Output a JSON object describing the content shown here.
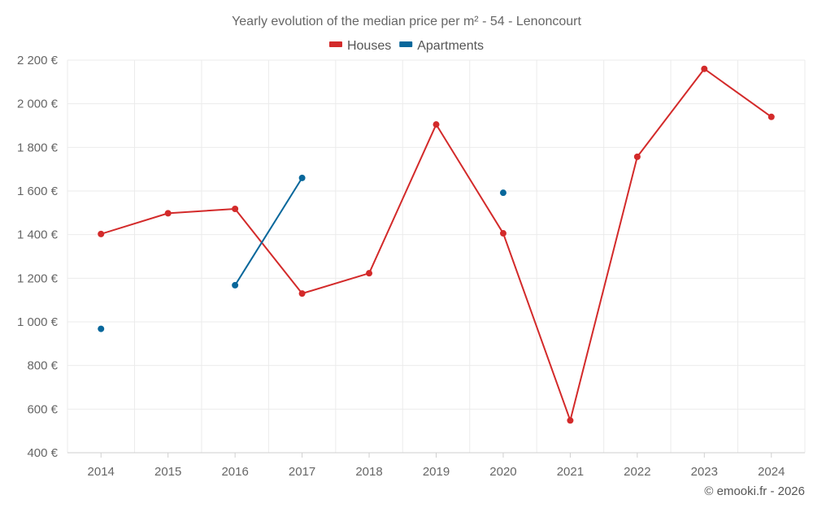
{
  "chart_data": {
    "type": "line",
    "title": "Yearly evolution of the median price per m² - 54 - Lenoncourt",
    "categories": [
      "2014",
      "2015",
      "2016",
      "2017",
      "2018",
      "2019",
      "2020",
      "2021",
      "2022",
      "2023",
      "2024"
    ],
    "series": [
      {
        "name": "Houses",
        "color": "#d32a2a",
        "values": [
          1403,
          1498,
          1518,
          1130,
          1223,
          1905,
          1406,
          548,
          1757,
          2160,
          1940
        ]
      },
      {
        "name": "Apartments",
        "color": "#08679b",
        "values": [
          968,
          null,
          1168,
          1660,
          null,
          null,
          1592,
          null,
          null,
          null,
          null
        ]
      }
    ],
    "ylim": [
      400,
      2200
    ],
    "yticks": [
      400,
      600,
      800,
      1000,
      1200,
      1400,
      1600,
      1800,
      2000,
      2200
    ],
    "ytick_labels": [
      "400 €",
      "600 €",
      "800 €",
      "1 000 €",
      "1 200 €",
      "1 400 €",
      "1 600 €",
      "1 800 €",
      "2 000 €",
      "2 200 €"
    ],
    "xlabel": "",
    "ylabel": "",
    "grid": true,
    "legend_position": "top-center"
  },
  "footer": "© emooki.fr - 2026"
}
